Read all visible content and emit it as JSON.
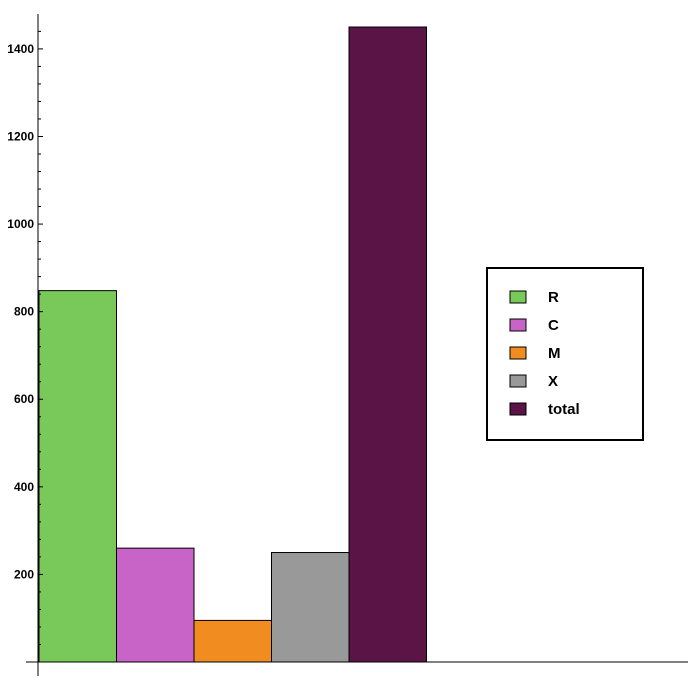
{
  "chart_data": {
    "type": "bar",
    "categories": [
      "R",
      "C",
      "M",
      "X",
      "total"
    ],
    "values": [
      848,
      260,
      95,
      250,
      1450
    ],
    "colors": [
      "#78c95a",
      "#c864c8",
      "#f08c20",
      "#999999",
      "#5a1446"
    ],
    "ylim": [
      0,
      1480
    ],
    "yticks": [
      200,
      400,
      600,
      800,
      1000,
      1200,
      1400
    ],
    "ytick_labels": [
      "200",
      "400",
      "600",
      "800",
      "1000",
      "1200",
      "1400"
    ],
    "title": "",
    "xlabel": "",
    "ylabel": "",
    "grid": false,
    "legend": {
      "placement": "right",
      "entries": [
        {
          "label": "R",
          "color": "#78c95a"
        },
        {
          "label": "C",
          "color": "#c864c8"
        },
        {
          "label": "M",
          "color": "#f08c20"
        },
        {
          "label": "X",
          "color": "#999999"
        },
        {
          "label": "total",
          "color": "#5a1446"
        }
      ]
    }
  }
}
